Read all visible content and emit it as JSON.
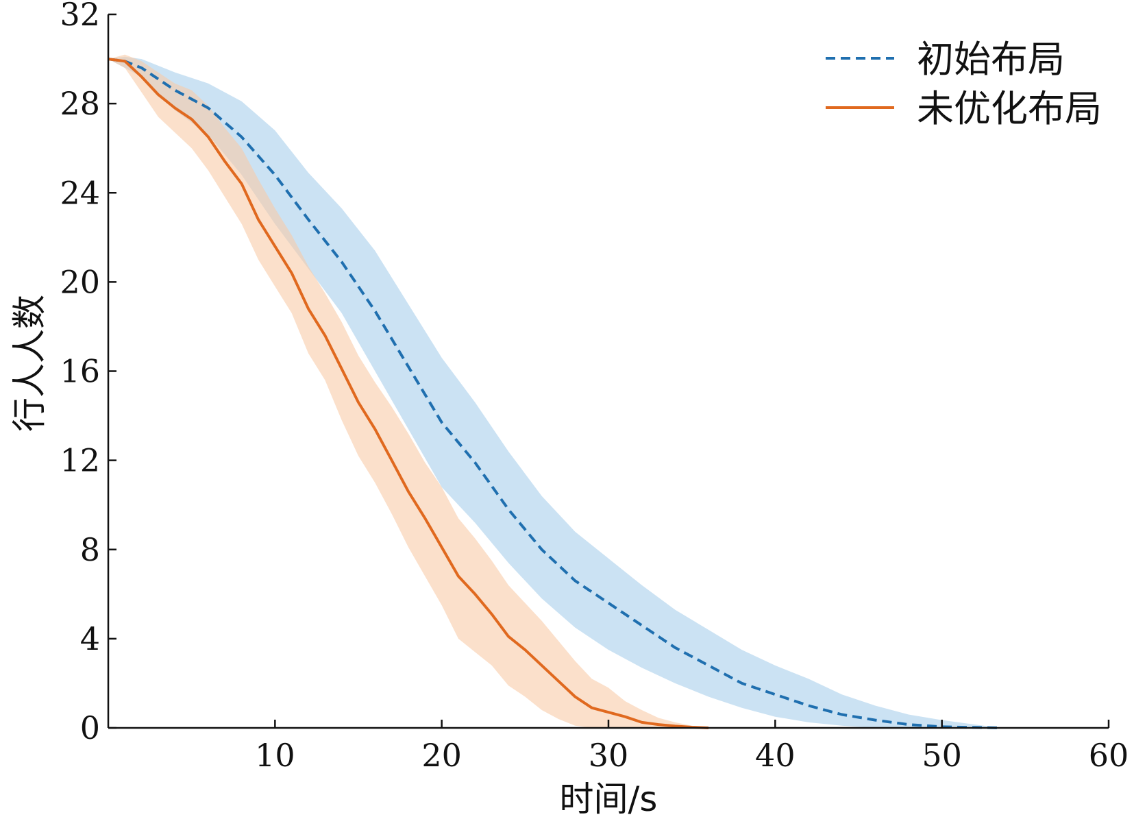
{
  "chart_data": {
    "type": "line",
    "xlabel": "时间/s",
    "ylabel": "行人人数",
    "xlim": [
      0,
      60
    ],
    "ylim": [
      0,
      32
    ],
    "xticks": [
      10,
      20,
      30,
      40,
      50,
      60
    ],
    "yticks": [
      0,
      4,
      8,
      12,
      16,
      20,
      24,
      28,
      32
    ],
    "grid": false,
    "legend_position": "top-right",
    "series": [
      {
        "name": "初始布局",
        "style": "dashed",
        "color": "#1f6faf",
        "band_color": "#a9cfeb",
        "x": [
          0,
          1,
          2,
          4,
          6,
          8,
          10,
          12,
          14,
          16,
          18,
          20,
          22,
          24,
          26,
          28,
          30,
          32,
          34,
          36,
          38,
          40,
          42,
          44,
          46,
          48,
          50,
          52,
          53.5
        ],
        "y": [
          30,
          29.9,
          29.6,
          28.6,
          27.8,
          26.5,
          24.8,
          22.8,
          20.9,
          18.7,
          16.2,
          13.7,
          11.9,
          9.8,
          8.0,
          6.6,
          5.6,
          4.6,
          3.6,
          2.8,
          2.0,
          1.5,
          1.0,
          0.6,
          0.35,
          0.15,
          0.05,
          0.02,
          0
        ],
        "upper": [
          30,
          30.1,
          30.0,
          29.4,
          28.9,
          28.1,
          26.8,
          24.9,
          23.3,
          21.4,
          19.0,
          16.6,
          14.6,
          12.4,
          10.4,
          8.8,
          7.6,
          6.4,
          5.3,
          4.4,
          3.5,
          2.8,
          2.2,
          1.5,
          1.0,
          0.6,
          0.35,
          0.15,
          0
        ],
        "lower": [
          30,
          29.6,
          29.2,
          27.7,
          26.6,
          24.8,
          22.6,
          20.6,
          18.6,
          16.0,
          13.4,
          10.8,
          9.2,
          7.4,
          5.8,
          4.5,
          3.5,
          2.7,
          2.0,
          1.4,
          0.9,
          0.5,
          0.25,
          0.1,
          0,
          0,
          0,
          0,
          0
        ]
      },
      {
        "name": "未优化布局",
        "style": "solid",
        "color": "#e0691f",
        "band_color": "#f8cca8",
        "x": [
          0,
          1,
          2,
          3,
          4,
          5,
          6,
          7,
          8,
          9,
          10,
          11,
          12,
          13,
          14,
          15,
          16,
          17,
          18,
          19,
          20,
          21,
          22,
          23,
          24,
          25,
          26,
          27,
          28,
          29,
          30,
          31,
          32,
          33,
          34,
          35,
          36
        ],
        "y": [
          30,
          29.9,
          29.2,
          28.4,
          27.8,
          27.3,
          26.5,
          25.4,
          24.4,
          22.8,
          21.6,
          20.4,
          18.8,
          17.6,
          16.1,
          14.6,
          13.4,
          12.0,
          10.6,
          9.4,
          8.1,
          6.8,
          6.0,
          5.1,
          4.1,
          3.5,
          2.8,
          2.1,
          1.4,
          0.9,
          0.7,
          0.5,
          0.25,
          0.15,
          0.08,
          0.03,
          0
        ],
        "upper": [
          30,
          30.2,
          29.9,
          29.4,
          28.9,
          28.6,
          27.9,
          26.9,
          26.0,
          24.6,
          23.3,
          22.1,
          20.7,
          19.5,
          18.2,
          16.7,
          15.5,
          14.4,
          13.2,
          11.9,
          10.8,
          9.4,
          8.5,
          7.5,
          6.4,
          5.6,
          4.8,
          3.9,
          3.0,
          2.2,
          1.8,
          1.2,
          0.8,
          0.45,
          0.25,
          0.1,
          0
        ],
        "lower": [
          30,
          29.6,
          28.5,
          27.4,
          26.7,
          26.0,
          25.0,
          23.8,
          22.6,
          21.0,
          19.8,
          18.6,
          16.8,
          15.6,
          13.8,
          12.2,
          11.0,
          9.6,
          8.1,
          6.8,
          5.5,
          4.0,
          3.4,
          2.8,
          1.9,
          1.4,
          0.8,
          0.4,
          0.1,
          0,
          0,
          0,
          0,
          0,
          0,
          0,
          0
        ]
      }
    ]
  }
}
